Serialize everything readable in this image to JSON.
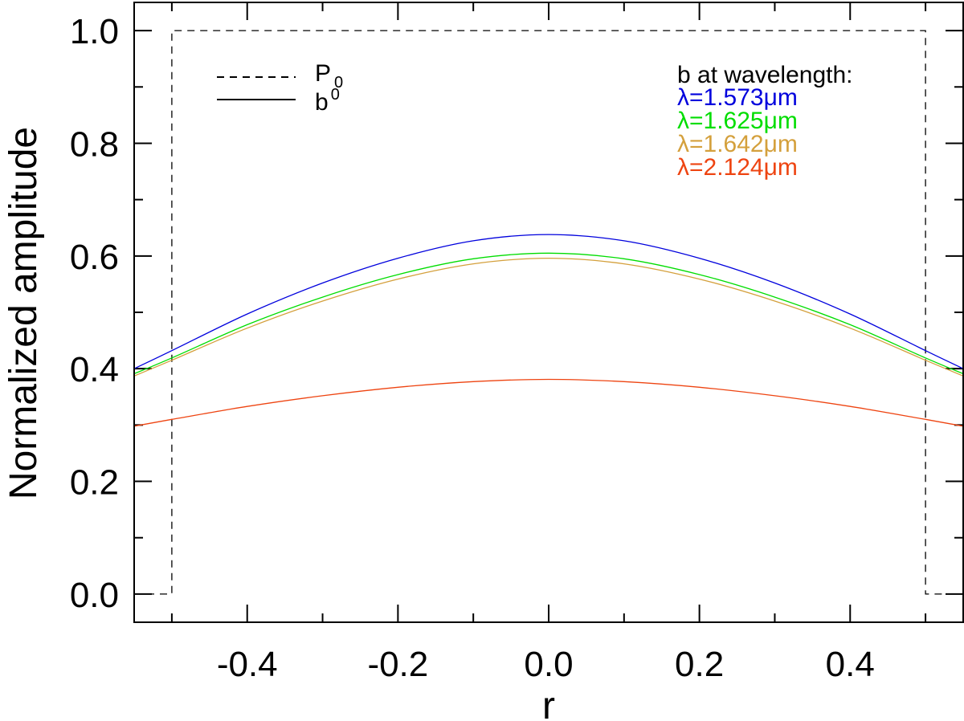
{
  "chart_data": {
    "type": "line",
    "title": "",
    "xlabel": "r",
    "ylabel": "Normalized amplitude",
    "xlim": [
      -0.55,
      0.55
    ],
    "ylim": [
      -0.05,
      1.05
    ],
    "x_ticks": [
      -0.4,
      -0.2,
      0.0,
      0.2,
      0.4
    ],
    "x_tick_labels": [
      "-0.4",
      "-0.2",
      "0.0",
      "0.2",
      "0.4"
    ],
    "y_ticks": [
      0.0,
      0.2,
      0.4,
      0.6,
      0.8,
      1.0
    ],
    "y_tick_labels": [
      "0.0",
      "0.2",
      "0.4",
      "0.6",
      "0.8",
      "1.0"
    ],
    "grid": false,
    "legend_placement": "top-left",
    "legend": [
      {
        "base": "P",
        "sub": "0",
        "style": "dashed",
        "color": "#000000"
      },
      {
        "base": "b",
        "sup": "0",
        "style": "solid",
        "color": "#000000"
      }
    ],
    "wavelength_header": "b at wavelength:",
    "wavelength_placement": "top-right",
    "pupil": {
      "name": "P0",
      "style": "dashed",
      "color": "#000000",
      "x": [
        -0.55,
        -0.5,
        -0.5,
        0.5,
        0.5,
        0.55
      ],
      "y": [
        0.0,
        0.0,
        1.0,
        1.0,
        0.0,
        0.0
      ]
    },
    "series": [
      {
        "name": "λ=1.573μm",
        "color": "#0000dd",
        "x": [
          -0.55,
          -0.5,
          -0.4,
          -0.3,
          -0.2,
          -0.1,
          0.0,
          0.1,
          0.2,
          0.3,
          0.4,
          0.5,
          0.55
        ],
        "y": [
          0.4,
          0.432,
          0.497,
          0.552,
          0.596,
          0.627,
          0.638,
          0.627,
          0.596,
          0.552,
          0.497,
          0.432,
          0.4
        ]
      },
      {
        "name": "λ=1.625μm",
        "color": "#00dd00",
        "x": [
          -0.55,
          -0.5,
          -0.4,
          -0.3,
          -0.2,
          -0.1,
          0.0,
          0.1,
          0.2,
          0.3,
          0.4,
          0.5,
          0.55
        ],
        "y": [
          0.391,
          0.419,
          0.478,
          0.527,
          0.567,
          0.595,
          0.605,
          0.595,
          0.567,
          0.527,
          0.478,
          0.419,
          0.391
        ]
      },
      {
        "name": "λ=1.642μm",
        "color": "#d4a03c",
        "x": [
          -0.55,
          -0.5,
          -0.4,
          -0.3,
          -0.2,
          -0.1,
          0.0,
          0.1,
          0.2,
          0.3,
          0.4,
          0.5,
          0.55
        ],
        "y": [
          0.387,
          0.415,
          0.472,
          0.52,
          0.559,
          0.586,
          0.596,
          0.586,
          0.559,
          0.52,
          0.472,
          0.415,
          0.387
        ]
      },
      {
        "name": "λ=2.124μm",
        "color": "#ee4411",
        "x": [
          -0.55,
          -0.5,
          -0.4,
          -0.3,
          -0.2,
          -0.1,
          0.0,
          0.1,
          0.2,
          0.3,
          0.4,
          0.5,
          0.55
        ],
        "y": [
          0.298,
          0.31,
          0.333,
          0.352,
          0.367,
          0.377,
          0.381,
          0.377,
          0.367,
          0.352,
          0.333,
          0.31,
          0.298
        ]
      }
    ]
  }
}
